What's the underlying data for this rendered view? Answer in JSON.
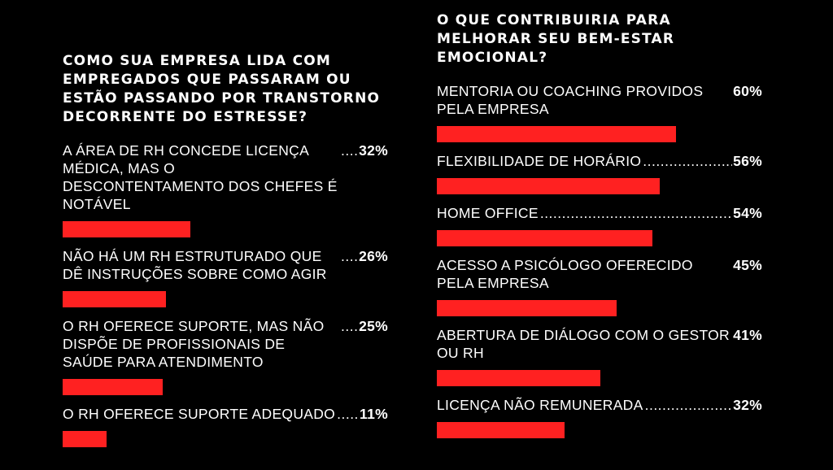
{
  "chart_data": [
    {
      "type": "bar",
      "orientation": "horizontal",
      "title": "COMO SUA EMPRESA LIDA COM EMPREGADOS QUE PASSARAM OU ESTÃO PASSANDO POR TRANSTORNO DECORRENTE DO ESTRESSE?",
      "categories": [
        "A ÁREA DE RH CONCEDE LICENÇA MÉDICA, MAS O DESCONTENTAMENTO DOS CHEFES É NOTÁVEL",
        "NÃO HÁ UM RH ESTRUTURADO QUE DÊ INSTRUÇÕES SOBRE COMO AGIR",
        "O RH OFERECE SUPORTE, MAS NÃO DISPÕE DE PROFISSIONAIS DE SAÚDE PARA ATENDIMENTO",
        "O RH OFERECE SUPORTE ADEQUADO"
      ],
      "values": [
        32,
        26,
        25,
        11
      ],
      "value_labels": [
        "32%",
        "26%",
        "25%",
        "11%"
      ],
      "unit": "%",
      "bar_color": "#ff2121"
    },
    {
      "type": "bar",
      "orientation": "horizontal",
      "title": "O QUE CONTRIBUIRIA PARA MELHORAR SEU BEM-ESTAR EMOCIONAL?",
      "categories": [
        "MENTORIA OU COACHING PROVIDOS PELA EMPRESA",
        "FLEXIBILIDADE DE HORÁRIO",
        "HOME OFFICE",
        "ACESSO A PSICÓLOGO OFERECIDO PELA EMPRESA",
        "ABERTURA DE DIÁLOGO COM O GESTOR OU RH",
        "LICENÇA NÃO REMUNERADA"
      ],
      "values": [
        60,
        56,
        54,
        45,
        41,
        32
      ],
      "value_labels": [
        "60%",
        "56%",
        "54%",
        "45%",
        "41%",
        "32%"
      ],
      "unit": "%",
      "bar_color": "#ff2121"
    }
  ],
  "colors": {
    "background": "#000000",
    "text": "#ffffff",
    "bar": "#ff2121"
  }
}
